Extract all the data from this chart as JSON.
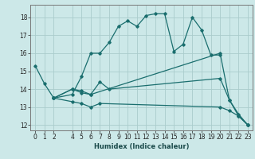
{
  "xlabel": "Humidex (Indice chaleur)",
  "bg_color": "#cce8e8",
  "grid_color": "#aacccc",
  "line_color": "#1a6e6e",
  "xlim": [
    -0.5,
    23.5
  ],
  "ylim": [
    11.7,
    18.7
  ],
  "xticks": [
    0,
    1,
    2,
    4,
    5,
    6,
    7,
    8,
    9,
    10,
    11,
    12,
    13,
    14,
    15,
    16,
    17,
    18,
    19,
    20,
    21,
    22,
    23
  ],
  "yticks": [
    12,
    13,
    14,
    15,
    16,
    17,
    18
  ],
  "lines": [
    {
      "x": [
        0,
        1,
        2,
        4,
        5,
        6,
        7,
        8,
        9,
        10,
        11,
        12,
        13,
        14,
        15,
        16,
        17,
        18,
        19,
        20
      ],
      "y": [
        15.3,
        14.3,
        13.5,
        13.7,
        14.7,
        16.0,
        16.0,
        16.6,
        17.5,
        17.8,
        17.5,
        18.1,
        18.2,
        18.2,
        16.1,
        16.5,
        18.0,
        17.3,
        15.9,
        15.9
      ]
    },
    {
      "x": [
        2,
        4,
        5,
        6,
        7,
        8,
        20,
        21,
        22,
        23
      ],
      "y": [
        13.5,
        14.0,
        13.8,
        13.7,
        14.4,
        14.0,
        14.6,
        13.4,
        12.6,
        12.0
      ]
    },
    {
      "x": [
        2,
        4,
        5,
        6,
        7,
        20,
        21,
        22,
        23
      ],
      "y": [
        13.5,
        13.3,
        13.2,
        13.0,
        13.2,
        13.0,
        12.8,
        12.5,
        12.0
      ]
    },
    {
      "x": [
        2,
        4,
        5,
        6,
        20,
        21,
        22,
        23
      ],
      "y": [
        13.5,
        14.0,
        13.9,
        13.7,
        16.0,
        13.4,
        12.5,
        12.0
      ]
    }
  ]
}
